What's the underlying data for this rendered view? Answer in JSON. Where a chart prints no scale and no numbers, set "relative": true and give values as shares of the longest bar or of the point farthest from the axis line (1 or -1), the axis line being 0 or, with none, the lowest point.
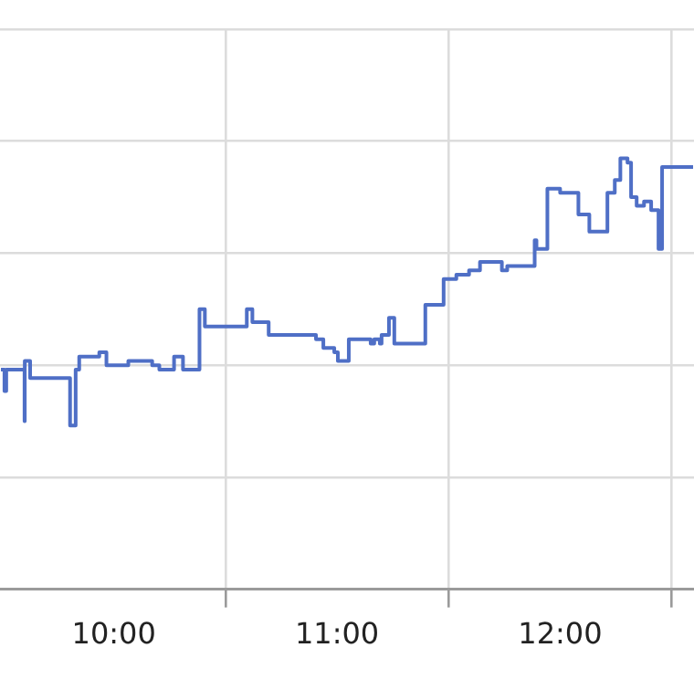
{
  "chart_data": {
    "type": "step",
    "relative": true,
    "grid": true,
    "legend": false,
    "marker": "none",
    "line_style": "solid",
    "xlim": [
      9.49,
      12.6
    ],
    "xticks": [
      {
        "value": 10,
        "label": "10:00"
      },
      {
        "value": 10.5,
        "label": null
      },
      {
        "value": 11,
        "label": "11:00"
      },
      {
        "value": 11.5,
        "label": null
      },
      {
        "value": 12,
        "label": "12:00"
      },
      {
        "value": 12.5,
        "label": null
      }
    ],
    "x": [
      9.494,
      9.51,
      9.518,
      9.6,
      9.601,
      9.625,
      9.804,
      9.829,
      9.845,
      9.935,
      9.967,
      10.065,
      10.172,
      10.204,
      10.27,
      10.31,
      10.384,
      10.408,
      10.596,
      10.621,
      10.694,
      10.906,
      10.939,
      10.988,
      11.004,
      11.053,
      11.151,
      11.167,
      11.192,
      11.2,
      11.233,
      11.257,
      11.274,
      11.396,
      11.478,
      11.535,
      11.592,
      11.641,
      11.739,
      11.763,
      11.886,
      11.894,
      11.943,
      12.0,
      12.082,
      12.131,
      12.212,
      12.245,
      12.27,
      12.302,
      12.318,
      12.343,
      12.376,
      12.408,
      12.441,
      12.457,
      12.596
    ],
    "series": [
      {
        "color": "#4f6fc6",
        "values": [
          0.51,
          0.46,
          0.51,
          0.39,
          0.53,
          0.49,
          0.38,
          0.51,
          0.54,
          0.55,
          0.52,
          0.53,
          0.52,
          0.51,
          0.54,
          0.51,
          0.65,
          0.61,
          0.65,
          0.62,
          0.59,
          0.58,
          0.56,
          0.55,
          0.53,
          0.58,
          0.57,
          0.58,
          0.57,
          0.59,
          0.63,
          0.57,
          0.57,
          0.66,
          0.72,
          0.73,
          0.74,
          0.76,
          0.74,
          0.75,
          0.81,
          0.79,
          0.93,
          0.92,
          0.87,
          0.83,
          0.92,
          0.95,
          1,
          0.99,
          0.91,
          0.89,
          0.9,
          0.88,
          0.79,
          0.98,
          0.98
        ]
      }
    ]
  }
}
